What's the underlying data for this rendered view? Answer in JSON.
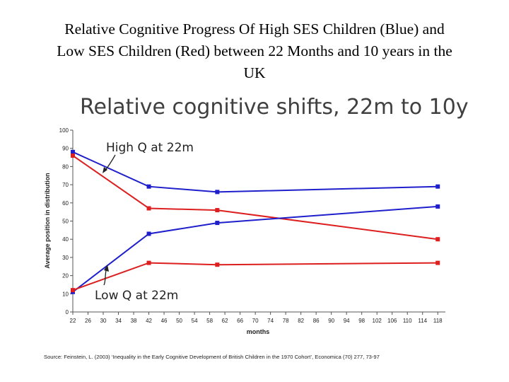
{
  "slide": {
    "title_lines": [
      "Relative Cognitive Progress Of High SES Children (Blue) and",
      "Low SES Children (Red) between 22 Months and 10 years in the",
      "UK"
    ]
  },
  "chart_data": {
    "type": "line",
    "title": "Relative cognitive shifts, 22m to 10y",
    "xlabel": "months",
    "ylabel": "Average position in distribution",
    "x_tick_labels": [
      "22",
      "26",
      "30",
      "34",
      "38",
      "42",
      "46",
      "50",
      "54",
      "58",
      "62",
      "66",
      "70",
      "74",
      "78",
      "82",
      "86",
      "90",
      "94",
      "98",
      "102",
      "106",
      "110",
      "114",
      "118"
    ],
    "xlim": [
      22,
      120
    ],
    "ylim": [
      0,
      100
    ],
    "y_ticks": [
      0,
      10,
      20,
      30,
      40,
      50,
      60,
      70,
      80,
      90,
      100
    ],
    "grid": false,
    "series": [
      {
        "group": "high",
        "color": "#1f1fcc",
        "x": [
          22,
          42,
          60,
          118
        ],
        "y": [
          88,
          69,
          66,
          69
        ]
      },
      {
        "group": "high",
        "color": "#dd1f1f",
        "x": [
          22,
          42,
          60,
          118
        ],
        "y": [
          86,
          57,
          56,
          40
        ]
      },
      {
        "group": "low",
        "color": "#1f1fcc",
        "x": [
          22,
          42,
          60,
          118
        ],
        "y": [
          11,
          43,
          49,
          58
        ]
      },
      {
        "group": "low",
        "color": "#dd1f1f",
        "x": [
          22,
          42,
          60,
          118
        ],
        "y": [
          12,
          27,
          26,
          27
        ]
      }
    ],
    "annotations": [
      "High Q at 22m",
      "Low Q at 22m"
    ],
    "source": "Source: Feinstein, L. (2003) ‘Inequality in the Early Cognitive Development of British Children in the 1970 Cohort’, Economica (70) 277, 73-97"
  }
}
